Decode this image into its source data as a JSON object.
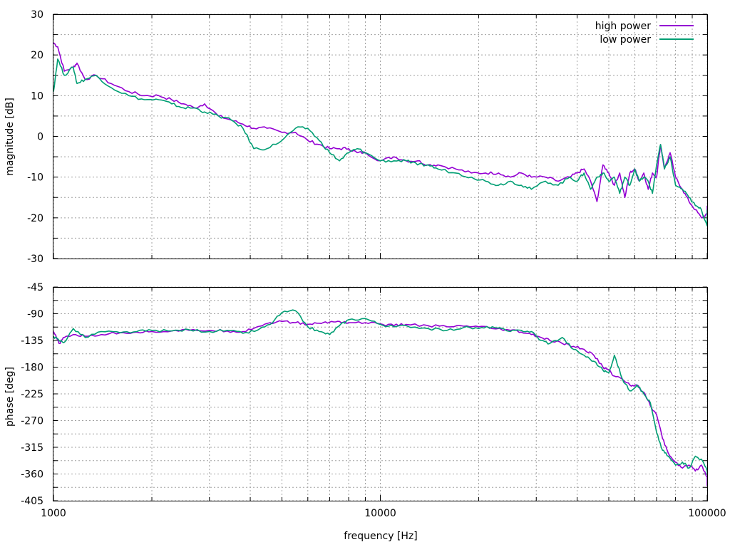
{
  "chart_data": [
    {
      "type": "line",
      "xscale": "log",
      "xlim": [
        1000,
        100000
      ],
      "ylim": [
        -30,
        30
      ],
      "ylabel": "magnitude [dB]",
      "xlabel": "",
      "y_ticks": [
        "30",
        "20",
        "10",
        "0",
        "-10",
        "-20",
        "-30"
      ],
      "grid": true,
      "legend": "top-right",
      "series": [
        {
          "name": "high power",
          "color": "#9400d3",
          "x": [
            1000,
            1030,
            1080,
            1150,
            1180,
            1250,
            1350,
            1500,
            1700,
            1900,
            2100,
            2300,
            2500,
            2700,
            2900,
            3200,
            3500,
            3800,
            4100,
            4500,
            5000,
            5500,
            6000,
            6500,
            7000,
            7500,
            8000,
            8500,
            9000,
            10000,
            11000,
            12000,
            13000,
            14000,
            15000,
            17000,
            19000,
            21000,
            23000,
            25000,
            27000,
            29000,
            32000,
            35000,
            38000,
            40000,
            42000,
            44000,
            46000,
            48000,
            50000,
            52000,
            54000,
            56000,
            58000,
            60000,
            62000,
            64000,
            66000,
            68000,
            70000,
            72000,
            74000,
            77000,
            80000,
            84000,
            88000,
            92000,
            96000,
            100000,
            104000
          ],
          "y": [
            23,
            22,
            16,
            17,
            18,
            14,
            15,
            13,
            11,
            10,
            10,
            9,
            8,
            7,
            8,
            5,
            4,
            3,
            2,
            2,
            1,
            1,
            -1,
            -2,
            -3,
            -3,
            -3,
            -4,
            -4,
            -6,
            -5,
            -6,
            -6,
            -7,
            -7,
            -8,
            -9,
            -9,
            -9,
            -10,
            -9,
            -10,
            -10,
            -11,
            -10,
            -9,
            -8,
            -11,
            -16,
            -7,
            -9,
            -12,
            -9,
            -15,
            -9,
            -8,
            -11,
            -9,
            -13,
            -9,
            -10,
            -2,
            -8,
            -4,
            -10,
            -13,
            -16,
            -18,
            -20,
            -19,
            -17
          ]
        },
        {
          "name": "low power",
          "color": "#009e73",
          "x": [
            1000,
            1030,
            1080,
            1150,
            1180,
            1250,
            1350,
            1500,
            1700,
            1900,
            2100,
            2300,
            2500,
            2700,
            2900,
            3200,
            3500,
            3800,
            4100,
            4500,
            5000,
            5500,
            6000,
            6500,
            7000,
            7500,
            8000,
            8500,
            9000,
            10000,
            11000,
            12000,
            13000,
            14000,
            15000,
            17000,
            19000,
            21000,
            23000,
            25000,
            27000,
            29000,
            32000,
            35000,
            38000,
            40000,
            42000,
            44000,
            46000,
            48000,
            50000,
            52000,
            54000,
            56000,
            58000,
            60000,
            62000,
            64000,
            66000,
            68000,
            70000,
            72000,
            74000,
            77000,
            80000,
            84000,
            88000,
            92000,
            96000,
            100000,
            104000
          ],
          "y": [
            11,
            19,
            15,
            17,
            13,
            14,
            15,
            12,
            10,
            9,
            9,
            8,
            7,
            7,
            6,
            5,
            4,
            2,
            -3,
            -3,
            -1,
            2,
            2,
            -1,
            -4,
            -6,
            -4,
            -3,
            -4,
            -6,
            -6,
            -6,
            -7,
            -7,
            -8,
            -9,
            -10,
            -11,
            -12,
            -11,
            -12,
            -13,
            -11,
            -12,
            -10,
            -11,
            -9,
            -13,
            -10,
            -9,
            -11,
            -10,
            -14,
            -10,
            -12,
            -8,
            -11,
            -10,
            -11,
            -14,
            -7,
            -2,
            -8,
            -5,
            -12,
            -13,
            -15,
            -17,
            -18,
            -22,
            -18
          ]
        }
      ]
    },
    {
      "type": "line",
      "xscale": "log",
      "xlim": [
        1000,
        100000
      ],
      "ylim": [
        -405,
        -45
      ],
      "ylabel": "phase [deg]",
      "xlabel": "frequency [Hz]",
      "y_ticks": [
        "-45",
        "-90",
        "-135",
        "-180",
        "-225",
        "-270",
        "-315",
        "-360",
        "-405"
      ],
      "x_ticks": [
        "1000",
        "10000",
        "100000"
      ],
      "grid": true,
      "series": [
        {
          "name": "high power",
          "color": "#9400d3",
          "x": [
            1000,
            1040,
            1080,
            1150,
            1250,
            1400,
            1600,
            1800,
            2000,
            2300,
            2600,
            3000,
            3400,
            3800,
            4200,
            4600,
            5000,
            5500,
            6000,
            6500,
            7000,
            7500,
            8000,
            9000,
            10000,
            11000,
            12000,
            14000,
            16000,
            18000,
            20000,
            22000,
            25000,
            27000,
            29000,
            31000,
            33000,
            36000,
            39000,
            42000,
            45000,
            48000,
            50000,
            52000,
            55000,
            58000,
            61000,
            64000,
            67000,
            70000,
            73000,
            76000,
            80000,
            84000,
            88000,
            92000,
            96000,
            100000,
            104000
          ],
          "y": [
            -120,
            -140,
            -130,
            -125,
            -128,
            -125,
            -122,
            -121,
            -120,
            -119,
            -118,
            -118,
            -119,
            -120,
            -112,
            -105,
            -103,
            -105,
            -108,
            -106,
            -104,
            -103,
            -105,
            -105,
            -107,
            -110,
            -108,
            -110,
            -112,
            -111,
            -112,
            -115,
            -118,
            -121,
            -125,
            -130,
            -135,
            -140,
            -145,
            -150,
            -160,
            -180,
            -185,
            -195,
            -200,
            -210,
            -210,
            -222,
            -245,
            -260,
            -300,
            -325,
            -340,
            -350,
            -345,
            -355,
            -345,
            -365,
            -380
          ]
        },
        {
          "name": "low power",
          "color": "#009e73",
          "x": [
            1000,
            1040,
            1080,
            1150,
            1250,
            1400,
            1600,
            1800,
            2000,
            2300,
            2600,
            3000,
            3400,
            3800,
            4200,
            4600,
            5000,
            5500,
            6000,
            6500,
            7000,
            7500,
            8000,
            9000,
            10000,
            11000,
            12000,
            14000,
            16000,
            18000,
            20000,
            22000,
            25000,
            27000,
            29000,
            31000,
            33000,
            36000,
            39000,
            42000,
            45000,
            48000,
            50000,
            52000,
            55000,
            58000,
            61000,
            64000,
            67000,
            70000,
            73000,
            76000,
            80000,
            84000,
            88000,
            92000,
            96000,
            100000,
            104000
          ],
          "y": [
            -128,
            -135,
            -138,
            -115,
            -130,
            -120,
            -122,
            -120,
            -118,
            -119,
            -117,
            -120,
            -118,
            -123,
            -118,
            -108,
            -88,
            -85,
            -112,
            -120,
            -125,
            -110,
            -100,
            -98,
            -108,
            -112,
            -110,
            -115,
            -118,
            -113,
            -115,
            -112,
            -120,
            -118,
            -120,
            -135,
            -140,
            -130,
            -150,
            -160,
            -170,
            -185,
            -190,
            -160,
            -200,
            -220,
            -210,
            -225,
            -240,
            -290,
            -320,
            -330,
            -345,
            -340,
            -350,
            -330,
            -335,
            -355,
            -360
          ]
        }
      ]
    }
  ]
}
